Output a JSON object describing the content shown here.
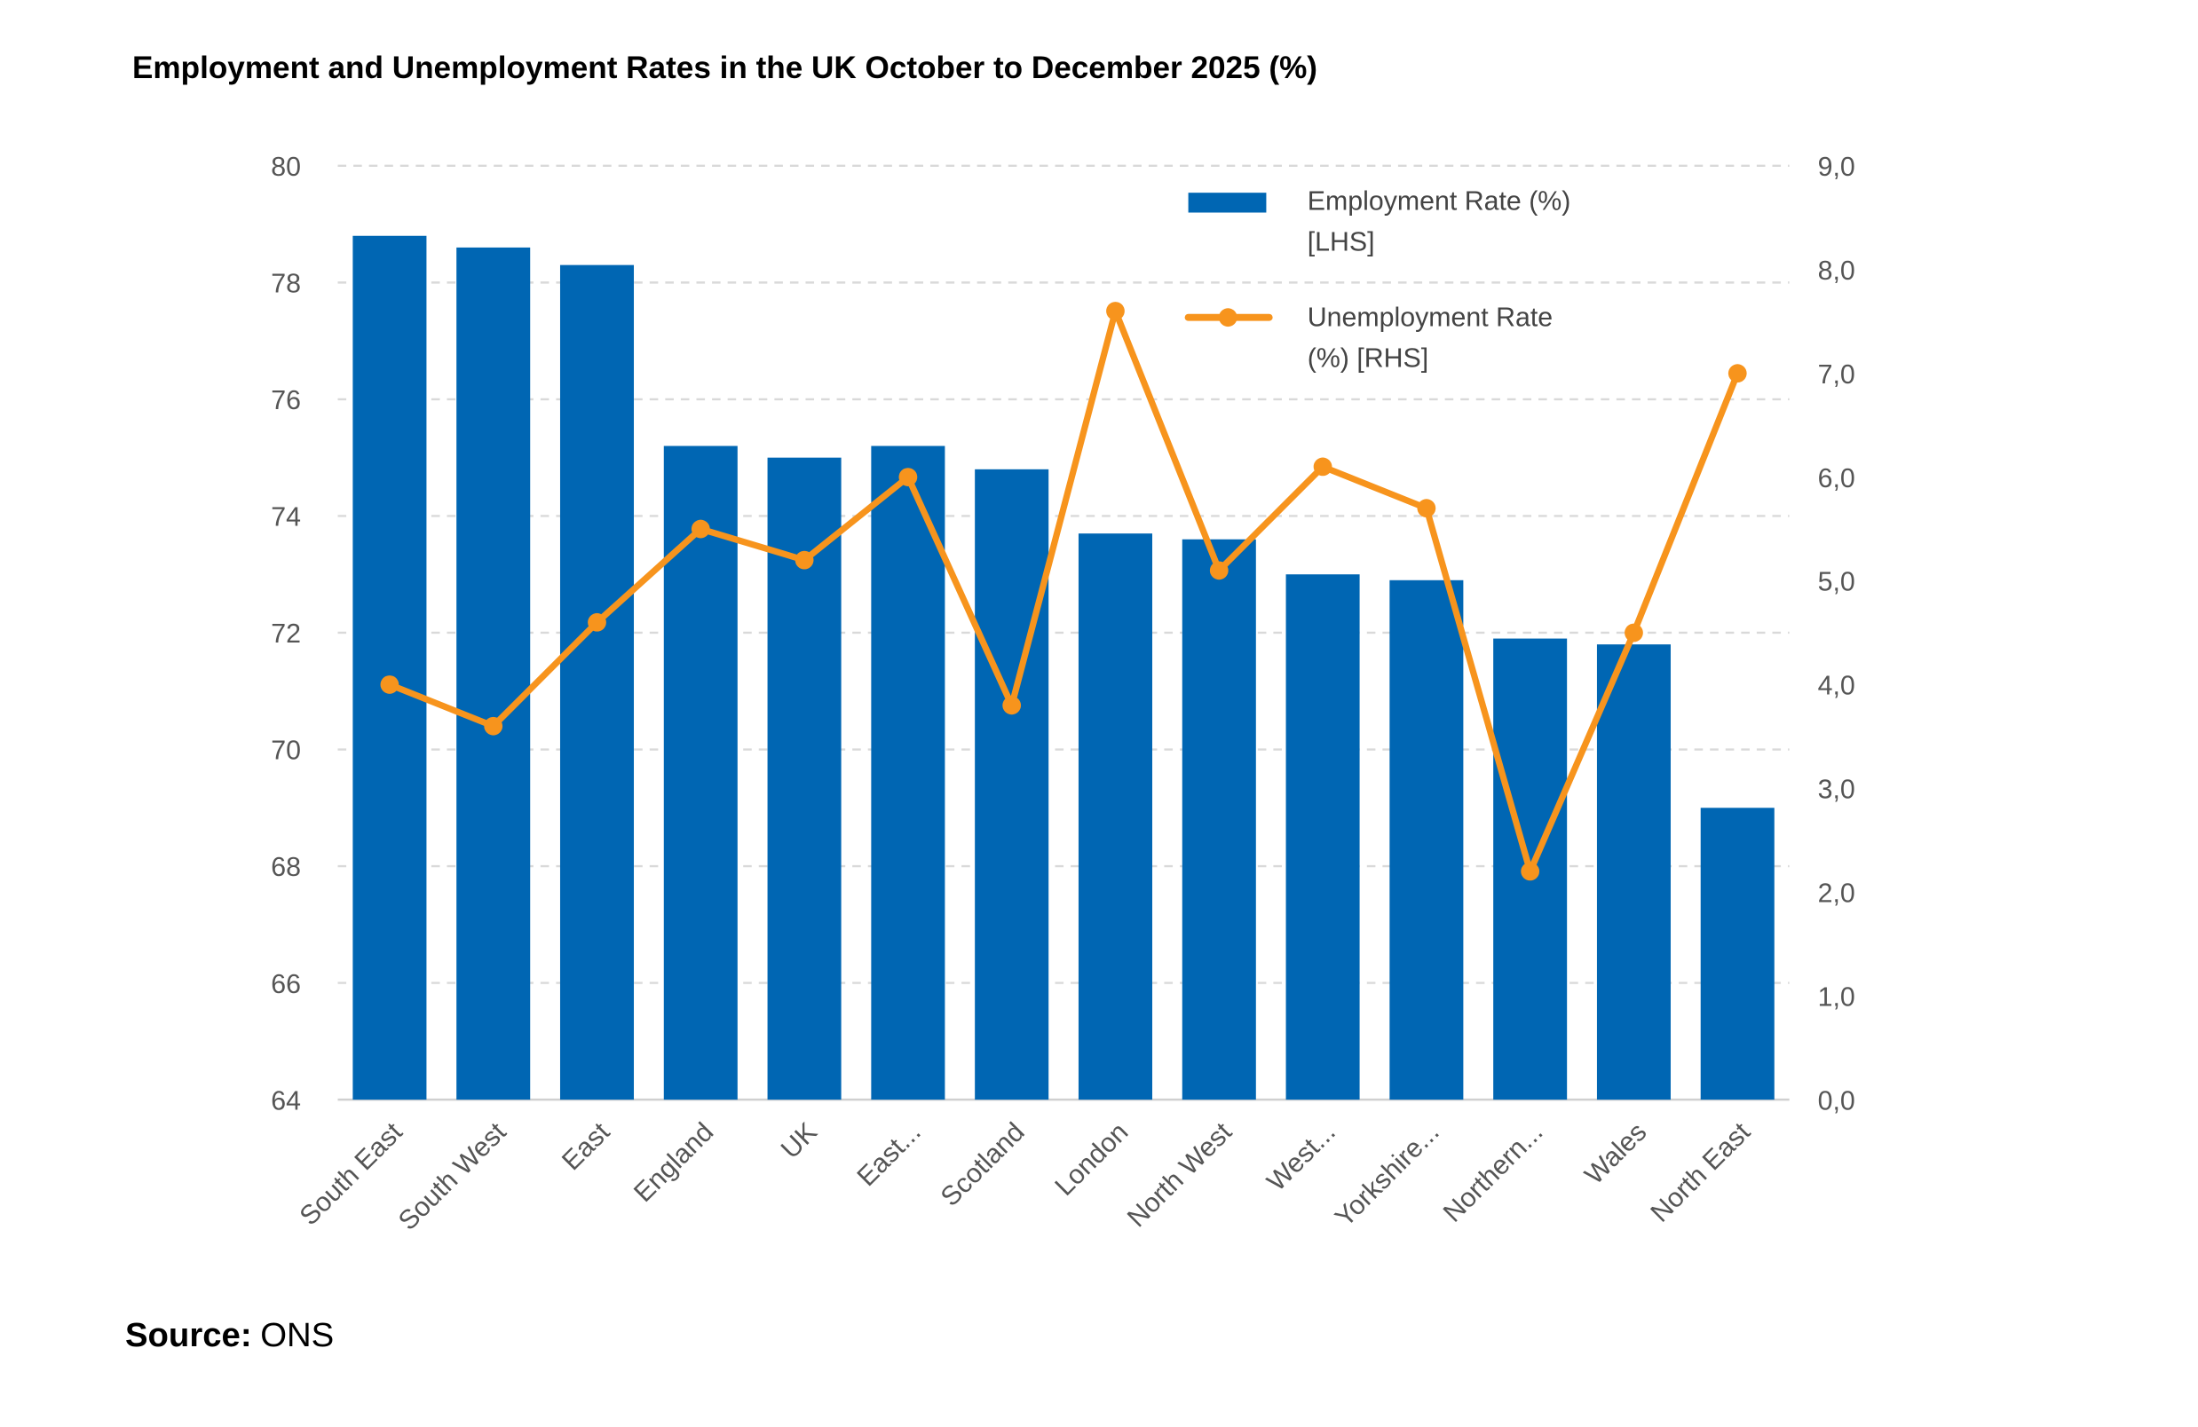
{
  "chart_data": {
    "type": "bar+line",
    "title": "Employment and Unemployment Rates in the UK October to December 2025 (%)",
    "categories": [
      "South East",
      "South West",
      "East",
      "England",
      "UK",
      "East...",
      "Scotland",
      "London",
      "North West",
      "West...",
      "Yorkshire...",
      "Northern...",
      "Wales",
      "North East"
    ],
    "series": [
      {
        "name": "Employment Rate (%) [LHS]",
        "name_lines": [
          "Employment Rate (%)",
          "[LHS]"
        ],
        "type": "bar",
        "axis": "left",
        "color": "#0066B3",
        "values": [
          78.8,
          78.6,
          78.3,
          75.2,
          75.0,
          75.2,
          74.8,
          73.7,
          73.6,
          73.0,
          72.9,
          71.9,
          71.8,
          69.0
        ]
      },
      {
        "name": "Unemployment Rate (%) [RHS]",
        "name_lines": [
          "Unemployment Rate",
          "(%) [RHS]"
        ],
        "type": "line",
        "axis": "right",
        "color": "#F7941D",
        "values": [
          4.0,
          3.6,
          4.6,
          5.5,
          5.2,
          6.0,
          3.8,
          7.6,
          5.1,
          6.1,
          5.7,
          2.2,
          4.5,
          7.0
        ]
      }
    ],
    "left_axis": {
      "ylim": [
        64,
        80
      ],
      "ticks": [
        "64",
        "66",
        "68",
        "70",
        "72",
        "74",
        "76",
        "78",
        "80"
      ]
    },
    "right_axis": {
      "ylim": [
        0,
        9
      ],
      "ticks": [
        "0,0",
        "1,0",
        "2,0",
        "3,0",
        "4,0",
        "5,0",
        "6,0",
        "7,0",
        "8,0",
        "9,0"
      ]
    },
    "grid": true,
    "legend_position": "top-right"
  },
  "source": {
    "label": "Source:",
    "value": "ONS"
  }
}
